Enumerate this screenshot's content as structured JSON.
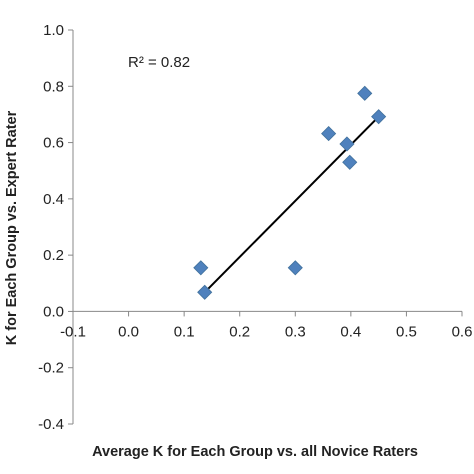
{
  "chart_data": {
    "type": "scatter",
    "title": "",
    "xlabel": "Average K for Each Group vs. all Novice Raters",
    "ylabel": "K for Each Group vs. Expert Rater",
    "xlim": [
      -0.1,
      0.6
    ],
    "ylim": [
      -0.4,
      1.0
    ],
    "x_ticks": [
      -0.1,
      0.0,
      0.1,
      0.2,
      0.3,
      0.4,
      0.5,
      0.6
    ],
    "x_tick_labels": [
      "-0.1",
      "0.0",
      "0.1",
      "0.2",
      "0.3",
      "0.4",
      "0.5",
      "0.6"
    ],
    "y_ticks": [
      -0.4,
      -0.2,
      0.0,
      0.2,
      0.4,
      0.6,
      0.8,
      1.0
    ],
    "y_tick_labels": [
      "-0.4",
      "-0.2",
      "0.0",
      "0.2",
      "0.4",
      "0.6",
      "0.8",
      "1.0"
    ],
    "grid": false,
    "legend": "none",
    "marker": "diamond",
    "marker_color": "#4f81bd",
    "series": [
      {
        "points": [
          {
            "x": 0.13,
            "y": 0.155
          },
          {
            "x": 0.137,
            "y": 0.068
          },
          {
            "x": 0.3,
            "y": 0.155
          },
          {
            "x": 0.36,
            "y": 0.632
          },
          {
            "x": 0.393,
            "y": 0.595
          },
          {
            "x": 0.398,
            "y": 0.53
          },
          {
            "x": 0.425,
            "y": 0.775
          },
          {
            "x": 0.45,
            "y": 0.692
          }
        ]
      }
    ],
    "trendline": {
      "type": "linear",
      "from": {
        "x": 0.137,
        "y": 0.068
      },
      "to": {
        "x": 0.45,
        "y": 0.692
      },
      "color": "#000000"
    },
    "annotation": "R² = 0.82"
  }
}
